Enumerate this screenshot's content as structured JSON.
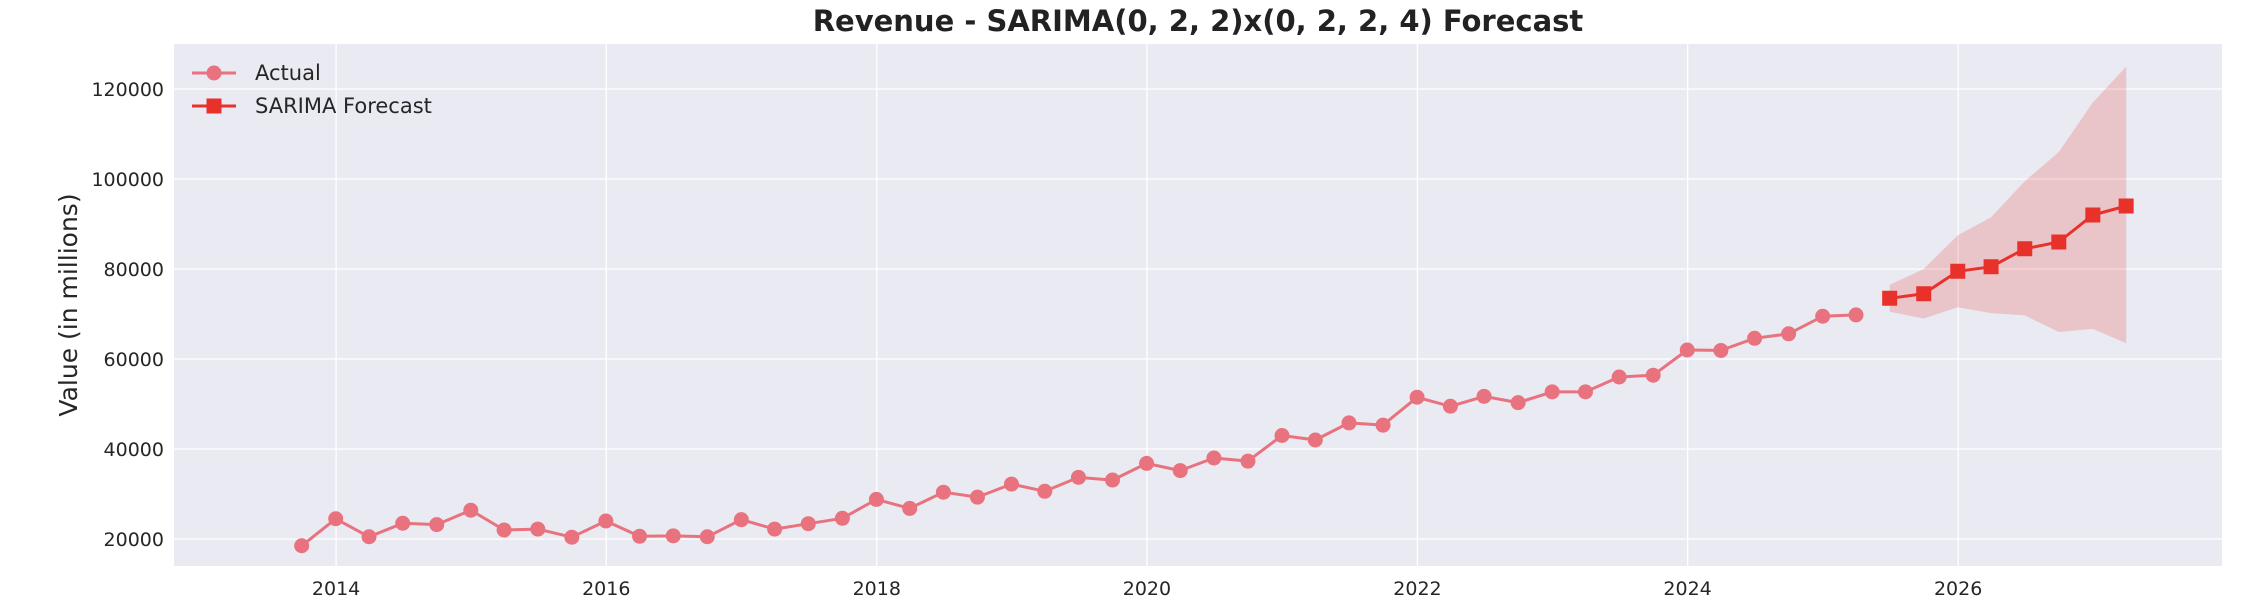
{
  "chart_data": {
    "type": "line",
    "title": "Revenue - SARIMA(0, 2, 2)x(0, 2, 2, 4) Forecast",
    "xlabel": "",
    "ylabel": "Value (in millions)",
    "xlim": [
      "2012-10-20",
      "2027-12-15"
    ],
    "ylim": [
      14000,
      130000
    ],
    "x_ticks": [
      "2014",
      "2016",
      "2018",
      "2020",
      "2022",
      "2024",
      "2026"
    ],
    "y_ticks": [
      20000,
      40000,
      60000,
      80000,
      100000,
      120000
    ],
    "grid": true,
    "legend_position": "top-left",
    "series": [
      {
        "name": "Actual",
        "color": "#e8737f",
        "marker": "circle",
        "x": [
          "2013-09-30",
          "2013-12-31",
          "2014-03-31",
          "2014-06-30",
          "2014-09-30",
          "2014-12-31",
          "2015-03-31",
          "2015-06-30",
          "2015-09-30",
          "2015-12-31",
          "2016-03-31",
          "2016-06-30",
          "2016-09-30",
          "2016-12-31",
          "2017-03-31",
          "2017-06-30",
          "2017-09-30",
          "2017-12-31",
          "2018-03-31",
          "2018-06-30",
          "2018-09-30",
          "2018-12-31",
          "2019-03-31",
          "2019-06-30",
          "2019-09-30",
          "2019-12-31",
          "2020-03-31",
          "2020-06-30",
          "2020-09-30",
          "2020-12-31",
          "2021-03-31",
          "2021-06-30",
          "2021-09-30",
          "2021-12-31",
          "2022-03-31",
          "2022-06-30",
          "2022-09-30",
          "2022-12-31",
          "2023-03-31",
          "2023-06-30",
          "2023-09-30",
          "2023-12-31",
          "2024-03-31",
          "2024-06-30",
          "2024-09-30",
          "2024-12-31",
          "2025-03-31"
        ],
        "values": [
          18500,
          24500,
          20500,
          23500,
          23200,
          26400,
          22000,
          22200,
          20400,
          24000,
          20600,
          20700,
          20500,
          24300,
          22200,
          23400,
          24600,
          28800,
          26800,
          30400,
          29300,
          32200,
          30600,
          33700,
          33100,
          36800,
          35200,
          38000,
          37300,
          43000,
          42000,
          45800,
          45300,
          51500,
          49500,
          51700,
          50300,
          52700,
          52700,
          56000,
          56400,
          62000,
          61900,
          64600,
          65600,
          69500,
          69800
        ]
      },
      {
        "name": "SARIMA Forecast",
        "color": "#e8312a",
        "marker": "square",
        "x": [
          "2025-06-30",
          "2025-09-30",
          "2025-12-31",
          "2026-03-31",
          "2026-06-30",
          "2026-09-30",
          "2026-12-31",
          "2027-03-31"
        ],
        "values": [
          73500,
          74500,
          79500,
          80500,
          84500,
          86000,
          92000,
          94000
        ],
        "ci_lower": [
          70500,
          69000,
          71500,
          70200,
          69700,
          66000,
          66700,
          63500
        ],
        "ci_upper": [
          76500,
          80000,
          87500,
          91500,
          99500,
          106000,
          117000,
          125000
        ]
      }
    ]
  }
}
